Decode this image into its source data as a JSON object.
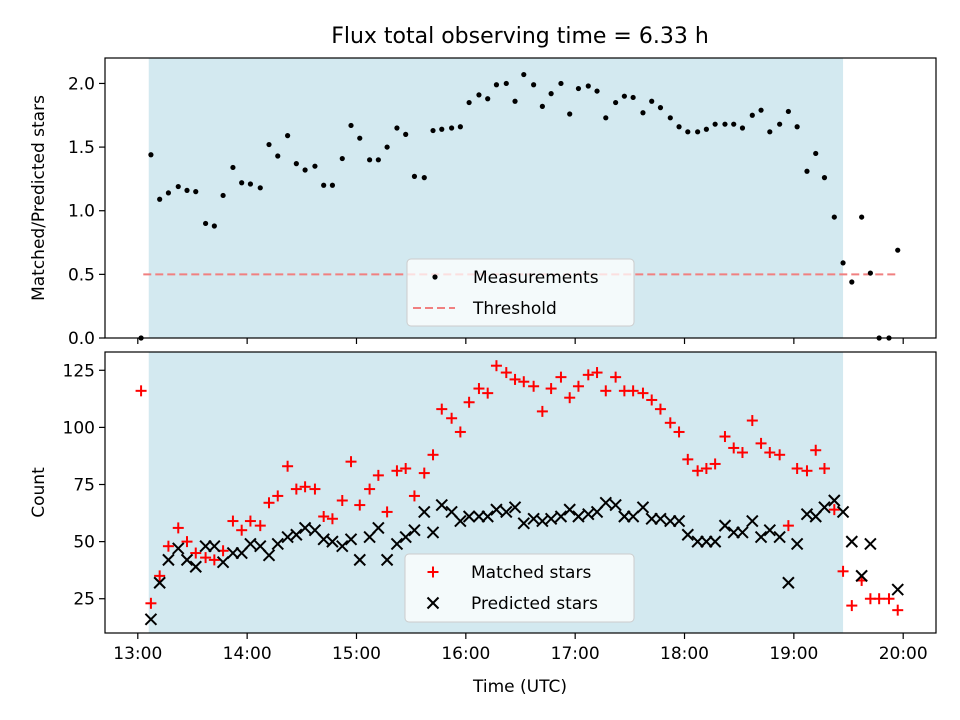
{
  "title": "Flux total observing time = 6.33 h",
  "colors": {
    "shade": "#d3e9f0",
    "measurement": "#000000",
    "threshold": "#f08080",
    "matched": "#ff0000",
    "predicted": "#000000"
  },
  "chart_data": [
    {
      "type": "scatter",
      "ylabel": "Matched/Predicted stars",
      "xlabel": "",
      "xlim": [
        12.7,
        20.3
      ],
      "ylim": [
        0,
        2.2
      ],
      "yticks": [
        0,
        0.5,
        1.0,
        1.5,
        2.0
      ],
      "ytick_labels": [
        "0.0",
        "0.5",
        "1.0",
        "1.5",
        "2.0"
      ],
      "shaded_span": [
        13.1,
        19.45
      ],
      "legend": {
        "location": "lower-center",
        "entries": [
          "Measurements",
          "Threshold"
        ]
      },
      "threshold": {
        "name": "Threshold",
        "value": 0.5,
        "x_range": [
          13.05,
          19.95
        ],
        "style": "dashed"
      },
      "series": [
        {
          "name": "Measurements",
          "marker": "dot",
          "points": [
            [
              13.03,
              0.0
            ],
            [
              13.12,
              1.44
            ],
            [
              13.2,
              1.09
            ],
            [
              13.28,
              1.14
            ],
            [
              13.37,
              1.19
            ],
            [
              13.45,
              1.16
            ],
            [
              13.53,
              1.15
            ],
            [
              13.62,
              0.9
            ],
            [
              13.7,
              0.88
            ],
            [
              13.78,
              1.12
            ],
            [
              13.87,
              1.34
            ],
            [
              13.95,
              1.22
            ],
            [
              14.03,
              1.21
            ],
            [
              14.12,
              1.18
            ],
            [
              14.2,
              1.52
            ],
            [
              14.28,
              1.43
            ],
            [
              14.37,
              1.59
            ],
            [
              14.45,
              1.37
            ],
            [
              14.53,
              1.32
            ],
            [
              14.62,
              1.35
            ],
            [
              14.7,
              1.2
            ],
            [
              14.78,
              1.2
            ],
            [
              14.87,
              1.41
            ],
            [
              14.95,
              1.67
            ],
            [
              15.03,
              1.57
            ],
            [
              15.12,
              1.4
            ],
            [
              15.2,
              1.4
            ],
            [
              15.28,
              1.5
            ],
            [
              15.37,
              1.65
            ],
            [
              15.45,
              1.6
            ],
            [
              15.53,
              1.27
            ],
            [
              15.62,
              1.26
            ],
            [
              15.7,
              1.63
            ],
            [
              15.78,
              1.64
            ],
            [
              15.87,
              1.65
            ],
            [
              15.95,
              1.66
            ],
            [
              16.03,
              1.85
            ],
            [
              16.12,
              1.91
            ],
            [
              16.2,
              1.88
            ],
            [
              16.28,
              1.99
            ],
            [
              16.37,
              2.0
            ],
            [
              16.45,
              1.86
            ],
            [
              16.53,
              2.07
            ],
            [
              16.62,
              1.99
            ],
            [
              16.7,
              1.82
            ],
            [
              16.78,
              1.92
            ],
            [
              16.87,
              2.0
            ],
            [
              16.95,
              1.76
            ],
            [
              17.03,
              1.96
            ],
            [
              17.12,
              1.98
            ],
            [
              17.2,
              1.94
            ],
            [
              17.28,
              1.73
            ],
            [
              17.37,
              1.85
            ],
            [
              17.45,
              1.9
            ],
            [
              17.53,
              1.89
            ],
            [
              17.62,
              1.77
            ],
            [
              17.7,
              1.86
            ],
            [
              17.78,
              1.81
            ],
            [
              17.87,
              1.73
            ],
            [
              17.95,
              1.66
            ],
            [
              18.03,
              1.62
            ],
            [
              18.12,
              1.62
            ],
            [
              18.2,
              1.64
            ],
            [
              18.28,
              1.68
            ],
            [
              18.37,
              1.68
            ],
            [
              18.45,
              1.68
            ],
            [
              18.53,
              1.65
            ],
            [
              18.62,
              1.75
            ],
            [
              18.7,
              1.79
            ],
            [
              18.78,
              1.62
            ],
            [
              18.87,
              1.68
            ],
            [
              18.95,
              1.78
            ],
            [
              19.03,
              1.66
            ],
            [
              19.12,
              1.31
            ],
            [
              19.2,
              1.45
            ],
            [
              19.28,
              1.26
            ],
            [
              19.37,
              0.95
            ],
            [
              19.45,
              0.59
            ],
            [
              19.53,
              0.44
            ],
            [
              19.62,
              0.95
            ],
            [
              19.7,
              0.51
            ],
            [
              19.78,
              0.0
            ],
            [
              19.87,
              0.0
            ],
            [
              19.95,
              0.69
            ]
          ]
        }
      ]
    },
    {
      "type": "scatter",
      "ylabel": "Count",
      "xlabel": "Time (UTC)",
      "xlim": [
        12.7,
        20.3
      ],
      "ylim": [
        10,
        133
      ],
      "yticks": [
        25,
        50,
        75,
        100,
        125
      ],
      "ytick_labels": [
        "25",
        "50",
        "75",
        "100",
        "125"
      ],
      "xticks": [
        13,
        14,
        15,
        16,
        17,
        18,
        19,
        20
      ],
      "xtick_labels": [
        "13:00",
        "14:00",
        "15:00",
        "16:00",
        "17:00",
        "18:00",
        "19:00",
        "20:00"
      ],
      "shaded_span": [
        13.1,
        19.45
      ],
      "legend": {
        "location": "lower-center",
        "entries": [
          "Matched stars",
          "Predicted stars"
        ]
      },
      "series": [
        {
          "name": "Matched stars",
          "marker": "plus",
          "points": [
            [
              13.03,
              116
            ],
            [
              13.12,
              23
            ],
            [
              13.2,
              35
            ],
            [
              13.28,
              48
            ],
            [
              13.37,
              56
            ],
            [
              13.45,
              50
            ],
            [
              13.53,
              45
            ],
            [
              13.62,
              43
            ],
            [
              13.7,
              42
            ],
            [
              13.78,
              46
            ],
            [
              13.87,
              59
            ],
            [
              13.95,
              55
            ],
            [
              14.03,
              59
            ],
            [
              14.12,
              57
            ],
            [
              14.2,
              67
            ],
            [
              14.28,
              70
            ],
            [
              14.37,
              83
            ],
            [
              14.45,
              73
            ],
            [
              14.53,
              74
            ],
            [
              14.62,
              73
            ],
            [
              14.7,
              61
            ],
            [
              14.78,
              60
            ],
            [
              14.87,
              68
            ],
            [
              14.95,
              85
            ],
            [
              15.03,
              66
            ],
            [
              15.12,
              73
            ],
            [
              15.2,
              79
            ],
            [
              15.28,
              63
            ],
            [
              15.37,
              81
            ],
            [
              15.45,
              82
            ],
            [
              15.53,
              70
            ],
            [
              15.62,
              80
            ],
            [
              15.7,
              88
            ],
            [
              15.78,
              108
            ],
            [
              15.87,
              104
            ],
            [
              15.95,
              98
            ],
            [
              16.03,
              111
            ],
            [
              16.12,
              117
            ],
            [
              16.2,
              115
            ],
            [
              16.28,
              127
            ],
            [
              16.37,
              124
            ],
            [
              16.45,
              121
            ],
            [
              16.53,
              120
            ],
            [
              16.62,
              118
            ],
            [
              16.7,
              107
            ],
            [
              16.78,
              117
            ],
            [
              16.87,
              122
            ],
            [
              16.95,
              113
            ],
            [
              17.03,
              118
            ],
            [
              17.12,
              123
            ],
            [
              17.2,
              124
            ],
            [
              17.28,
              116
            ],
            [
              17.37,
              122
            ],
            [
              17.45,
              116
            ],
            [
              17.53,
              116
            ],
            [
              17.62,
              115
            ],
            [
              17.7,
              112
            ],
            [
              17.78,
              108
            ],
            [
              17.87,
              102
            ],
            [
              17.95,
              98
            ],
            [
              18.03,
              86
            ],
            [
              18.12,
              81
            ],
            [
              18.2,
              82
            ],
            [
              18.28,
              84
            ],
            [
              18.37,
              96
            ],
            [
              18.45,
              91
            ],
            [
              18.53,
              89
            ],
            [
              18.62,
              103
            ],
            [
              18.7,
              93
            ],
            [
              18.78,
              89
            ],
            [
              18.87,
              88
            ],
            [
              18.95,
              57
            ],
            [
              19.03,
              82
            ],
            [
              19.12,
              81
            ],
            [
              19.2,
              90
            ],
            [
              19.28,
              82
            ],
            [
              19.37,
              64
            ],
            [
              19.45,
              37
            ],
            [
              19.53,
              22
            ],
            [
              19.62,
              33
            ],
            [
              19.7,
              25
            ],
            [
              19.78,
              25
            ],
            [
              19.87,
              25
            ],
            [
              19.95,
              20
            ]
          ]
        },
        {
          "name": "Predicted stars",
          "marker": "x",
          "points": [
            [
              13.12,
              16
            ],
            [
              13.2,
              32
            ],
            [
              13.28,
              42
            ],
            [
              13.37,
              47
            ],
            [
              13.45,
              42
            ],
            [
              13.53,
              39
            ],
            [
              13.62,
              48
            ],
            [
              13.7,
              48
            ],
            [
              13.78,
              41
            ],
            [
              13.87,
              45
            ],
            [
              13.95,
              45
            ],
            [
              14.03,
              49
            ],
            [
              14.12,
              48
            ],
            [
              14.2,
              44
            ],
            [
              14.28,
              49
            ],
            [
              14.37,
              52
            ],
            [
              14.45,
              53
            ],
            [
              14.53,
              56
            ],
            [
              14.62,
              55
            ],
            [
              14.7,
              51
            ],
            [
              14.78,
              50
            ],
            [
              14.87,
              48
            ],
            [
              14.95,
              51
            ],
            [
              15.03,
              42
            ],
            [
              15.12,
              52
            ],
            [
              15.2,
              56
            ],
            [
              15.28,
              42
            ],
            [
              15.37,
              49
            ],
            [
              15.45,
              52
            ],
            [
              15.53,
              55
            ],
            [
              15.62,
              63
            ],
            [
              15.7,
              54
            ],
            [
              15.78,
              66
            ],
            [
              15.87,
              63
            ],
            [
              15.95,
              59
            ],
            [
              16.03,
              61
            ],
            [
              16.12,
              61
            ],
            [
              16.2,
              61
            ],
            [
              16.28,
              64
            ],
            [
              16.37,
              63
            ],
            [
              16.45,
              65
            ],
            [
              16.53,
              58
            ],
            [
              16.62,
              60
            ],
            [
              16.7,
              59
            ],
            [
              16.78,
              60
            ],
            [
              16.87,
              61
            ],
            [
              16.95,
              64
            ],
            [
              17.03,
              61
            ],
            [
              17.12,
              62
            ],
            [
              17.2,
              63
            ],
            [
              17.28,
              67
            ],
            [
              17.37,
              66
            ],
            [
              17.45,
              61
            ],
            [
              17.53,
              61
            ],
            [
              17.62,
              65
            ],
            [
              17.7,
              60
            ],
            [
              17.78,
              60
            ],
            [
              17.87,
              59
            ],
            [
              17.95,
              59
            ],
            [
              18.03,
              53
            ],
            [
              18.12,
              50
            ],
            [
              18.2,
              50
            ],
            [
              18.28,
              50
            ],
            [
              18.37,
              57
            ],
            [
              18.45,
              54
            ],
            [
              18.53,
              54
            ],
            [
              18.62,
              59
            ],
            [
              18.7,
              52
            ],
            [
              18.78,
              55
            ],
            [
              18.87,
              52
            ],
            [
              18.95,
              32
            ],
            [
              19.03,
              49
            ],
            [
              19.12,
              62
            ],
            [
              19.2,
              61
            ],
            [
              19.28,
              65
            ],
            [
              19.37,
              68
            ],
            [
              19.45,
              63
            ],
            [
              19.53,
              50
            ],
            [
              19.62,
              35
            ],
            [
              19.7,
              49
            ],
            [
              19.95,
              29
            ]
          ]
        }
      ]
    }
  ]
}
